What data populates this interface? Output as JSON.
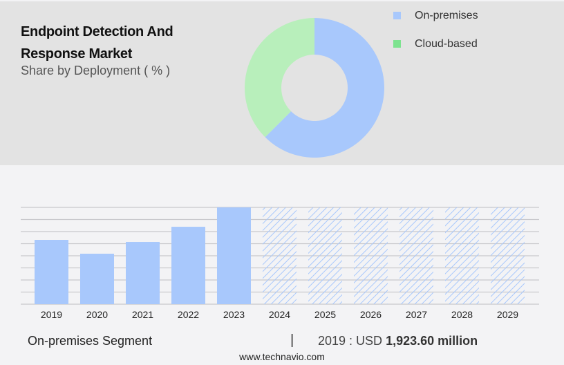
{
  "header": {
    "title_line1": "Endpoint Detection And",
    "title_line2": "Response Market",
    "subtitle": "Share by Deployment ( % )"
  },
  "colors": {
    "on_premises": "#a8c8fc",
    "cloud_based": "#b8efbb",
    "cloud_legend": "#7de38f",
    "background_top": "#e3e3e3",
    "background_bottom": "#f3f3f5"
  },
  "chart_data": [
    {
      "type": "pie",
      "donut": true,
      "legend_placement": "top-right",
      "slices": [
        {
          "name": "On-premises",
          "value": 62.5
        },
        {
          "name": "Cloud-based",
          "value": 37.5
        }
      ]
    },
    {
      "type": "bar",
      "categories": [
        "2019",
        "2020",
        "2021",
        "2022",
        "2023",
        "2024",
        "2025",
        "2026",
        "2027",
        "2028",
        "2029"
      ],
      "values": [
        1923.6,
        1510,
        1861,
        2316,
        2896,
        null,
        null,
        null,
        null,
        null,
        null
      ],
      "forecast_categories": [
        "2024",
        "2025",
        "2026",
        "2027",
        "2028",
        "2029"
      ],
      "forecast_style": "hatched",
      "ylim": [
        0,
        2896
      ],
      "grid": true,
      "y_tick_labels": false
    }
  ],
  "footer": {
    "segment": "On-premises Segment",
    "separator": "|",
    "year_label": "2019 : USD",
    "value": "1,923.60 million",
    "site": "www.technavio.com"
  }
}
